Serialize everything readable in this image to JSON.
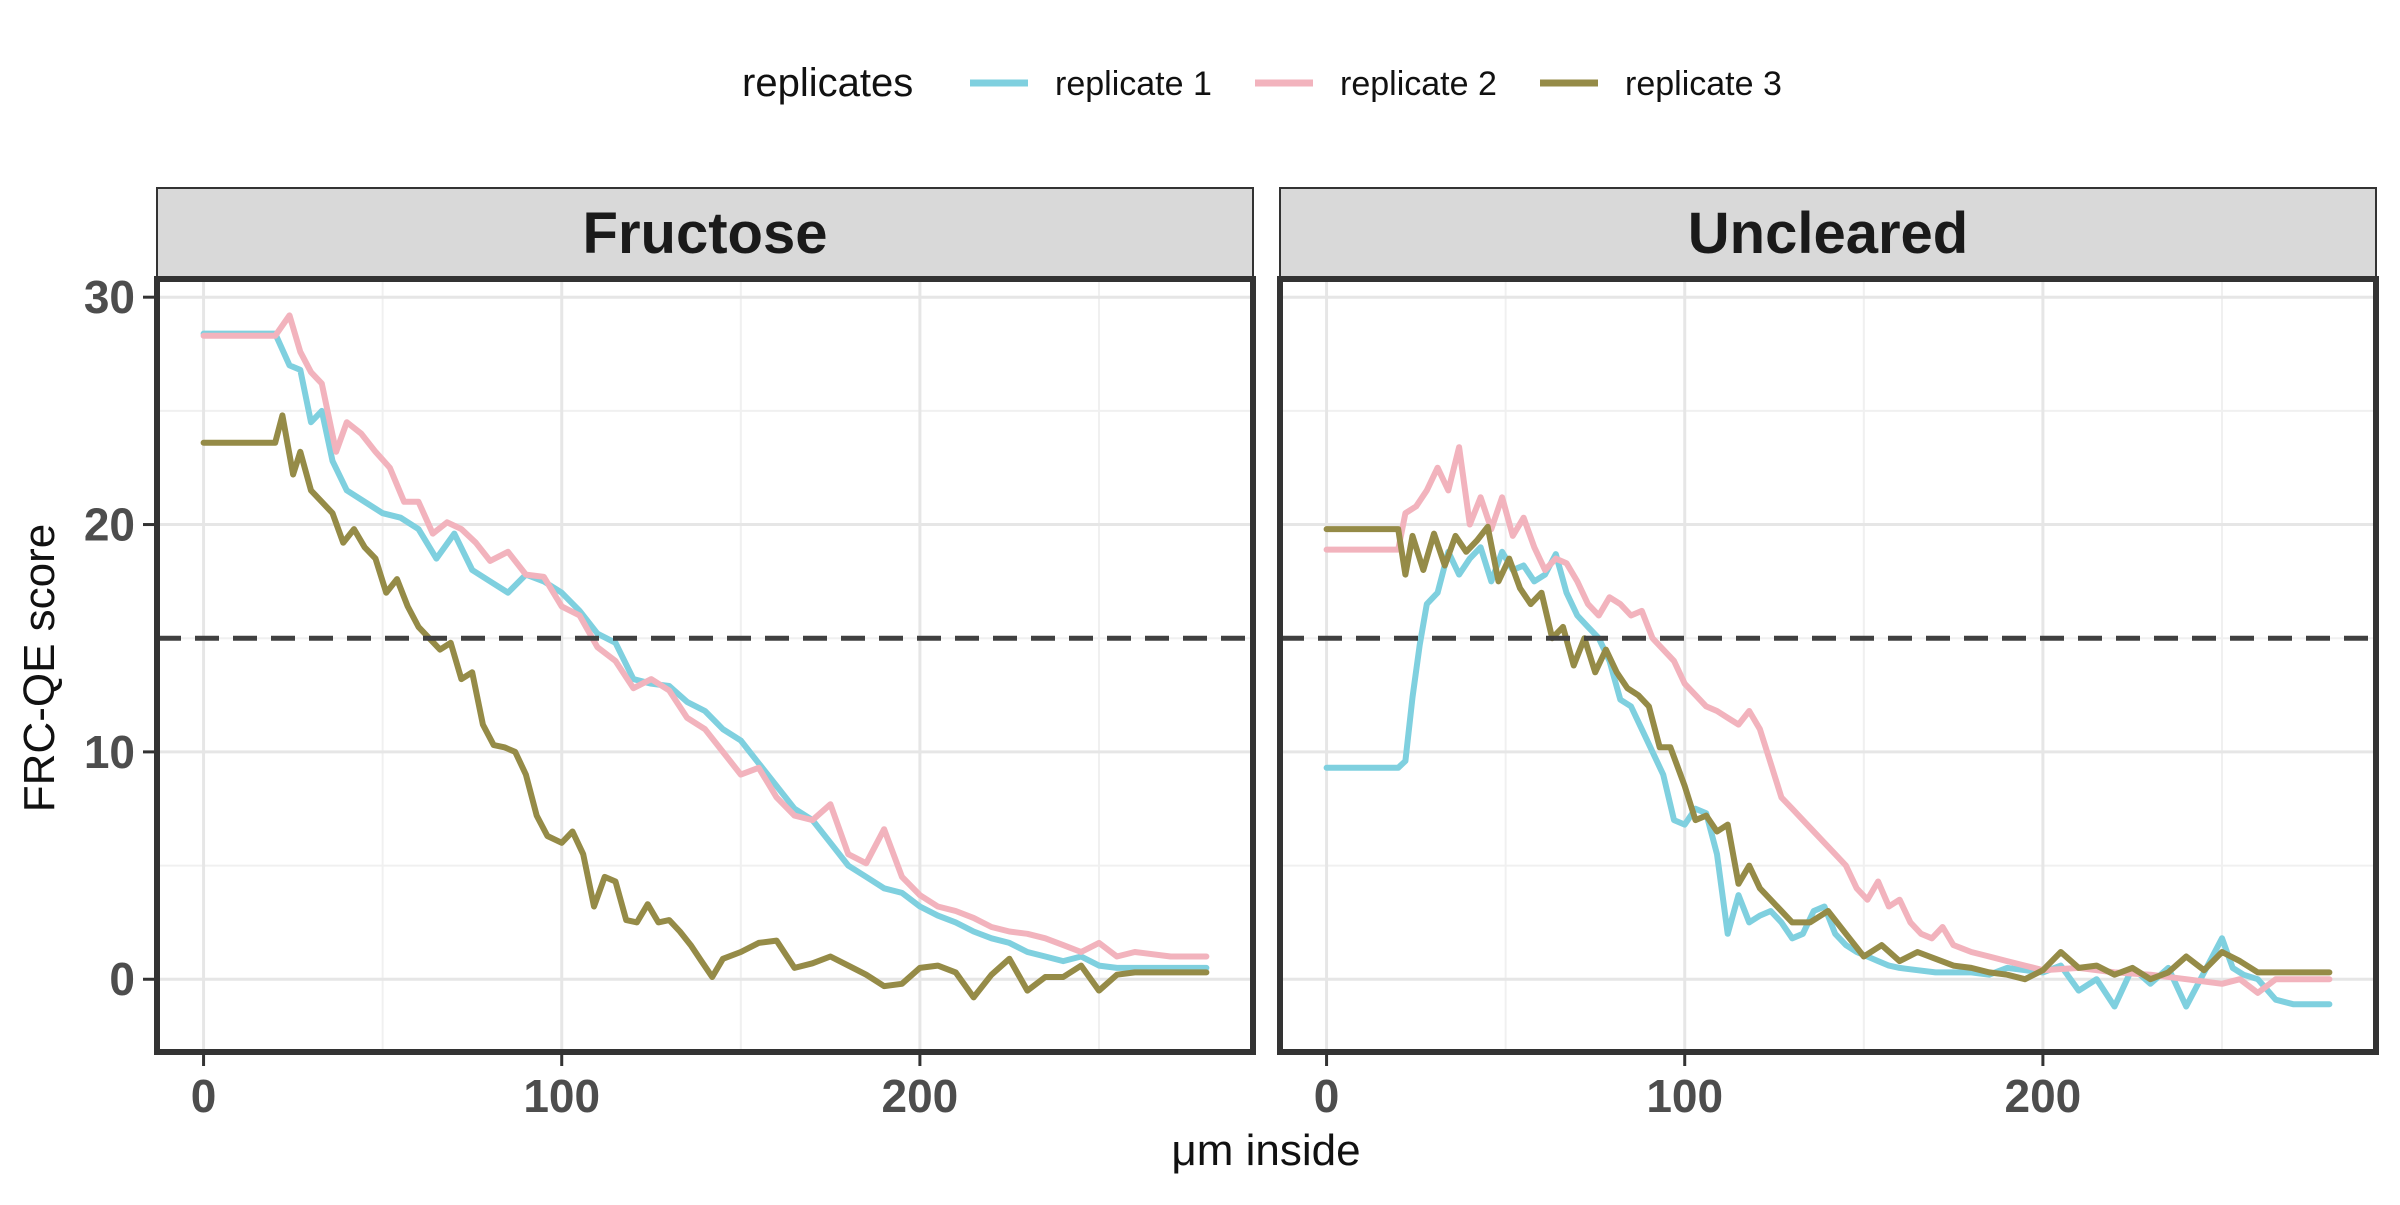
{
  "chart_data": {
    "type": "line",
    "xlabel": "μm inside",
    "ylabel": "FRC-QE score",
    "legend": {
      "title": "replicates",
      "position": "top",
      "entries": [
        "replicate 1",
        "replicate 2",
        "replicate 3"
      ]
    },
    "xlim": [
      -13,
      293
    ],
    "ylim": [
      -3.2,
      30.8
    ],
    "x_ticks": [
      0,
      100,
      200
    ],
    "y_ticks": [
      0,
      10,
      20,
      30
    ],
    "grid": true,
    "hline": {
      "y": 15,
      "style": "dashed",
      "color": "#404040"
    },
    "colors": {
      "replicate 1": "#7fd0df",
      "replicate 2": "#f2b3bd",
      "replicate 3": "#958b47"
    },
    "facets": [
      {
        "label": "Fructose",
        "series": [
          {
            "name": "replicate 1",
            "x": [
              0,
              20,
              24,
              27,
              30,
              33,
              36,
              40,
              45,
              50,
              55,
              60,
              65,
              70,
              75,
              80,
              85,
              90,
              95,
              100,
              105,
              110,
              115,
              120,
              125,
              130,
              135,
              140,
              145,
              150,
              155,
              160,
              165,
              170,
              175,
              180,
              185,
              190,
              195,
              200,
              205,
              210,
              215,
              220,
              225,
              230,
              235,
              240,
              245,
              250,
              255,
              260,
              265,
              270,
              275,
              280
            ],
            "y": [
              28.4,
              28.4,
              27.0,
              26.8,
              24.5,
              25.0,
              22.8,
              21.5,
              21.0,
              20.5,
              20.3,
              19.8,
              18.5,
              19.6,
              18.0,
              17.5,
              17.0,
              17.8,
              17.5,
              17.0,
              16.2,
              15.2,
              14.8,
              13.2,
              13.0,
              12.9,
              12.2,
              11.8,
              11.0,
              10.5,
              9.5,
              8.5,
              7.5,
              7.0,
              6.0,
              5.0,
              4.5,
              4.0,
              3.8,
              3.2,
              2.8,
              2.5,
              2.1,
              1.8,
              1.6,
              1.2,
              1.0,
              0.8,
              1.0,
              0.6,
              0.5,
              0.5,
              0.5,
              0.5,
              0.5,
              0.5
            ]
          },
          {
            "name": "replicate 2",
            "x": [
              0,
              20,
              24,
              27,
              30,
              33,
              37,
              40,
              44,
              48,
              52,
              56,
              60,
              64,
              68,
              72,
              76,
              80,
              85,
              90,
              95,
              100,
              105,
              110,
              115,
              120,
              125,
              130,
              135,
              140,
              145,
              150,
              155,
              160,
              165,
              170,
              175,
              180,
              185,
              190,
              195,
              200,
              205,
              210,
              215,
              220,
              225,
              230,
              235,
              240,
              245,
              250,
              255,
              260,
              270,
              280
            ],
            "y": [
              28.3,
              28.3,
              29.2,
              27.6,
              26.7,
              26.2,
              23.2,
              24.5,
              24.0,
              23.2,
              22.5,
              21.0,
              21.0,
              19.6,
              20.1,
              19.8,
              19.2,
              18.4,
              18.8,
              17.8,
              17.7,
              16.4,
              16.0,
              14.6,
              14.0,
              12.8,
              13.2,
              12.7,
              11.5,
              11.0,
              10.0,
              9.0,
              9.3,
              8.0,
              7.2,
              7.0,
              7.7,
              5.5,
              5.1,
              6.6,
              4.5,
              3.7,
              3.2,
              3.0,
              2.7,
              2.3,
              2.1,
              2.0,
              1.8,
              1.5,
              1.2,
              1.6,
              1.0,
              1.2,
              1.0,
              1.0
            ]
          },
          {
            "name": "replicate 3",
            "x": [
              0,
              20,
              22,
              25,
              27,
              30,
              33,
              36,
              39,
              42,
              45,
              48,
              51,
              54,
              57,
              60,
              63,
              66,
              69,
              72,
              75,
              78,
              81,
              84,
              87,
              90,
              93,
              96,
              100,
              103,
              106,
              109,
              112,
              115,
              118,
              121,
              124,
              127,
              130,
              133,
              136,
              139,
              142,
              145,
              150,
              155,
              160,
              165,
              170,
              175,
              180,
              185,
              190,
              195,
              200,
              205,
              210,
              215,
              220,
              225,
              230,
              235,
              240,
              245,
              250,
              255,
              260,
              270,
              280
            ],
            "y": [
              23.6,
              23.6,
              24.8,
              22.2,
              23.2,
              21.5,
              21.0,
              20.5,
              19.2,
              19.8,
              19.0,
              18.5,
              17.0,
              17.6,
              16.4,
              15.5,
              15.0,
              14.5,
              14.8,
              13.2,
              13.5,
              11.2,
              10.3,
              10.2,
              10.0,
              9.0,
              7.2,
              6.3,
              6.0,
              6.5,
              5.5,
              3.2,
              4.5,
              4.3,
              2.6,
              2.5,
              3.3,
              2.5,
              2.6,
              2.1,
              1.5,
              0.8,
              0.1,
              0.9,
              1.2,
              1.6,
              1.7,
              0.5,
              0.7,
              1.0,
              0.6,
              0.2,
              -0.3,
              -0.2,
              0.5,
              0.6,
              0.3,
              -0.8,
              0.2,
              0.9,
              -0.5,
              0.1,
              0.1,
              0.6,
              -0.5,
              0.2,
              0.3,
              0.3,
              0.3
            ]
          }
        ]
      },
      {
        "label": "Uncleared",
        "series": [
          {
            "name": "replicate 1",
            "x": [
              0,
              20,
              22,
              24,
              26,
              28,
              31,
              34,
              37,
              40,
              43,
              46,
              49,
              52,
              55,
              58,
              61,
              64,
              67,
              70,
              73,
              76,
              79,
              82,
              85,
              88,
              91,
              94,
              97,
              100,
              103,
              106,
              109,
              112,
              115,
              118,
              121,
              124,
              127,
              130,
              133,
              136,
              139,
              142,
              145,
              148,
              151,
              154,
              157,
              160,
              165,
              170,
              175,
              180,
              185,
              190,
              195,
              200,
              205,
              210,
              215,
              220,
              225,
              230,
              235,
              240,
              245,
              250,
              253,
              256,
              260,
              265,
              270,
              280
            ],
            "y": [
              9.3,
              9.3,
              9.6,
              12.4,
              14.7,
              16.5,
              17.0,
              18.8,
              17.8,
              18.5,
              19.0,
              17.5,
              18.8,
              18.0,
              18.2,
              17.5,
              17.8,
              18.7,
              17.0,
              16.0,
              15.5,
              15.0,
              14.0,
              12.3,
              12.0,
              11.0,
              10.0,
              9.0,
              7.0,
              6.8,
              7.5,
              7.3,
              5.5,
              2.0,
              3.7,
              2.5,
              2.8,
              3.0,
              2.5,
              1.8,
              2.0,
              3.0,
              3.2,
              2.0,
              1.5,
              1.2,
              1.0,
              0.8,
              0.6,
              0.5,
              0.4,
              0.3,
              0.3,
              0.3,
              0.2,
              0.5,
              0.4,
              0.3,
              0.6,
              -0.5,
              0.0,
              -1.2,
              0.5,
              -0.2,
              0.5,
              -1.2,
              0.3,
              1.8,
              0.5,
              0.2,
              0.0,
              -0.9,
              -1.1,
              -1.1
            ]
          },
          {
            "name": "replicate 2",
            "x": [
              0,
              20,
              22,
              25,
              28,
              31,
              34,
              37,
              40,
              43,
              46,
              49,
              52,
              55,
              58,
              61,
              64,
              67,
              70,
              73,
              76,
              79,
              82,
              85,
              88,
              91,
              94,
              97,
              100,
              103,
              106,
              109,
              112,
              115,
              118,
              121,
              124,
              127,
              130,
              133,
              136,
              139,
              142,
              145,
              148,
              151,
              154,
              157,
              160,
              163,
              166,
              169,
              172,
              175,
              180,
              185,
              190,
              195,
              200,
              210,
              220,
              230,
              240,
              250,
              255,
              260,
              265,
              270,
              280
            ],
            "y": [
              18.9,
              18.9,
              20.5,
              20.8,
              21.5,
              22.5,
              21.5,
              23.4,
              20.0,
              21.2,
              19.8,
              21.2,
              19.5,
              20.3,
              19.0,
              18.0,
              18.5,
              18.3,
              17.5,
              16.5,
              16.0,
              16.8,
              16.5,
              16.0,
              16.2,
              15.0,
              14.5,
              14.0,
              13.0,
              12.5,
              12.0,
              11.8,
              11.5,
              11.2,
              11.8,
              11.0,
              9.5,
              8.0,
              7.5,
              7.0,
              6.5,
              6.0,
              5.5,
              5.0,
              4.0,
              3.5,
              4.3,
              3.2,
              3.5,
              2.5,
              2.0,
              1.8,
              2.3,
              1.5,
              1.2,
              1.0,
              0.8,
              0.6,
              0.4,
              0.5,
              0.3,
              0.2,
              0.0,
              -0.2,
              0.0,
              -0.6,
              0.0,
              0.0,
              0.0
            ]
          },
          {
            "name": "replicate 3",
            "x": [
              0,
              20,
              22,
              24,
              27,
              30,
              33,
              36,
              39,
              42,
              45,
              48,
              51,
              54,
              57,
              60,
              63,
              66,
              69,
              72,
              75,
              78,
              81,
              84,
              87,
              90,
              93,
              96,
              100,
              103,
              106,
              109,
              112,
              115,
              118,
              121,
              124,
              127,
              130,
              135,
              140,
              145,
              150,
              155,
              160,
              165,
              170,
              175,
              180,
              185,
              190,
              195,
              200,
              205,
              210,
              215,
              220,
              225,
              230,
              235,
              240,
              245,
              250,
              255,
              260,
              270,
              280
            ],
            "y": [
              19.8,
              19.8,
              17.8,
              19.5,
              18.0,
              19.6,
              18.2,
              19.5,
              18.8,
              19.3,
              19.9,
              17.5,
              18.5,
              17.2,
              16.5,
              17.0,
              15.0,
              15.5,
              13.8,
              15.0,
              13.5,
              14.5,
              13.5,
              12.8,
              12.5,
              12.0,
              10.2,
              10.2,
              8.5,
              7.0,
              7.2,
              6.5,
              6.8,
              4.2,
              5.0,
              4.0,
              3.5,
              3.0,
              2.5,
              2.5,
              3.0,
              2.0,
              1.0,
              1.5,
              0.8,
              1.2,
              0.9,
              0.6,
              0.5,
              0.3,
              0.2,
              0.0,
              0.4,
              1.2,
              0.5,
              0.6,
              0.2,
              0.5,
              0.0,
              0.3,
              1.0,
              0.4,
              1.2,
              0.8,
              0.3,
              0.3,
              0.3
            ]
          }
        ]
      }
    ]
  }
}
